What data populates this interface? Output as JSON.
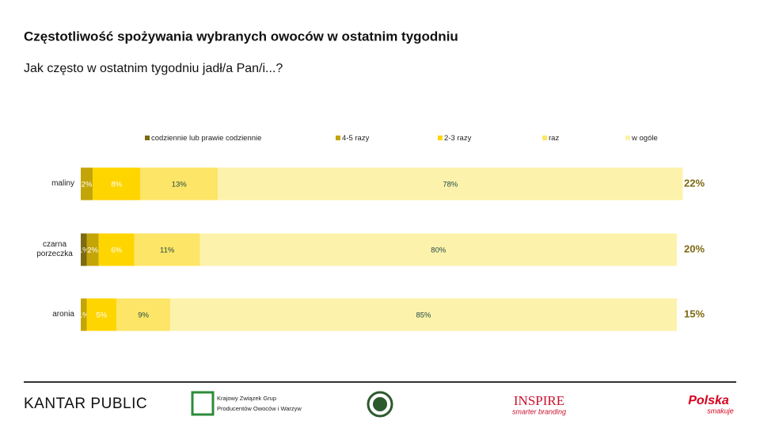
{
  "chart_data": {
    "type": "stacked-bar-horizontal",
    "title": "Częstotliwość spożywania wybranych owoców w ostatnim tygodniu",
    "subtitle": "Jak często w ostatnim tygodniu jadł/a Pan/i...?",
    "categories": [
      "maliny",
      "czarna porzeczka",
      "aronia"
    ],
    "xlim": [
      0,
      100
    ],
    "series": [
      {
        "name": "codziennie lub prawie codziennie",
        "color": "#7d6a12",
        "values": [
          0,
          1,
          0
        ],
        "value_labels": [
          null,
          "1%",
          null
        ]
      },
      {
        "name": "4-5 razy",
        "color": "#c4a508",
        "values": [
          2,
          2,
          1
        ],
        "value_labels": [
          "2%",
          "2%",
          "1%"
        ]
      },
      {
        "name": "2-3 razy",
        "color": "#ffd500",
        "values": [
          8,
          6,
          5
        ],
        "value_labels": [
          "8%",
          "6%",
          "5%"
        ]
      },
      {
        "name": "raz",
        "color": "#fde567",
        "values": [
          13,
          11,
          9
        ],
        "value_labels": [
          "13%",
          "11%",
          "9%"
        ]
      },
      {
        "name": "w ogóle",
        "color": "#fdf2ab",
        "values": [
          78,
          80,
          85
        ],
        "value_labels": [
          "78%",
          "80%",
          "85%"
        ]
      }
    ],
    "totals": {
      "values": [
        22,
        20,
        15
      ],
      "labels": [
        "22%",
        "20%",
        "15%"
      ],
      "color": "#7d6a12"
    },
    "legend": "top"
  },
  "footer": {
    "logos": [
      "KANTAR PUBLIC",
      "Krajowy Związek Grup",
      "Producentów Owoców i Warzyw",
      "INSPIRE",
      "smarter branding",
      "Polska",
      "smakuje"
    ]
  }
}
